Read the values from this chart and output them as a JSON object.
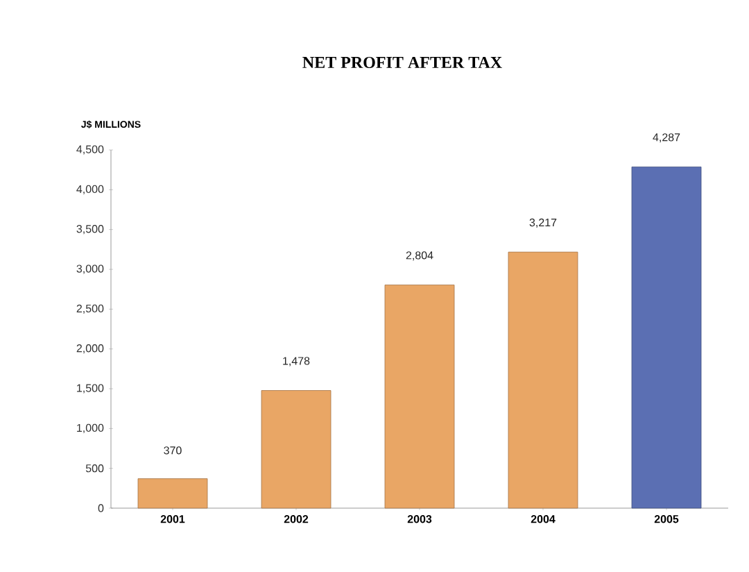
{
  "chart_data": {
    "type": "bar",
    "title": "NET PROFIT AFTER TAX",
    "ylabel": "J$ MILLIONS",
    "categories": [
      "2001",
      "2002",
      "2003",
      "2004",
      "2005"
    ],
    "values": [
      370,
      1478,
      2804,
      3217,
      4287
    ],
    "colors": [
      "#e9a665",
      "#e9a665",
      "#e9a665",
      "#e9a665",
      "#5b6fb3"
    ],
    "value_labels": [
      "370",
      "1,478",
      "2,804",
      "3,217",
      "4,287"
    ],
    "ylim": [
      0,
      4500
    ],
    "yticks": [
      0,
      500,
      {
        "value": 1000,
        "label": "1,000"
      },
      {
        "value": 1500,
        "label": "1,500"
      },
      {
        "value": 2000,
        "label": "2,000"
      },
      {
        "value": 2500,
        "label": "2,500"
      },
      {
        "value": 3000,
        "label": "3,000"
      },
      {
        "value": 3500,
        "label": "3,500"
      },
      {
        "value": 4000,
        "label": "4,000"
      },
      {
        "value": 4500,
        "label": "4,500"
      }
    ],
    "grid": false
  }
}
